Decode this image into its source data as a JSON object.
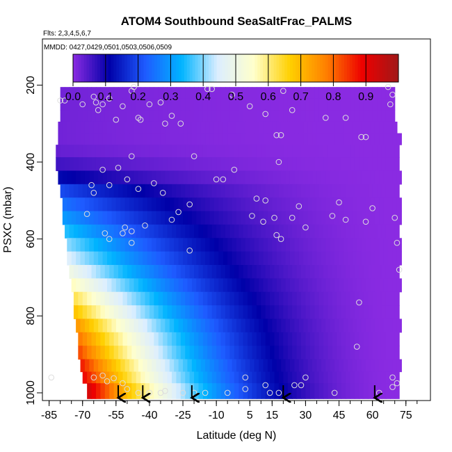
{
  "chart_data": {
    "type": "heatmap",
    "title": "ATOM4 Southbound SeaSaltFrac_PALMS",
    "flights_label": "Flts: 2,3,4,5,6,7",
    "dates_label": "MMDD: 0427,0429,0501,0503,0506,0509",
    "xlabel": "Latitude (deg N)",
    "ylabel": "PSXC (mbar)",
    "xlim": [
      -88,
      86
    ],
    "ylim": [
      1020,
      80
    ],
    "x_ticks": [
      -85,
      -70,
      -55,
      -40,
      -25,
      -10,
      5,
      15,
      30,
      45,
      60,
      75
    ],
    "x_tick_labels": [
      "-85",
      "-70",
      "-55",
      "-40",
      "-25",
      "-10",
      "5",
      "15",
      "30",
      "45",
      "60",
      "75"
    ],
    "y_ticks": [
      200,
      400,
      600,
      800,
      1000
    ],
    "y_tick_labels": [
      "200",
      "400",
      "600",
      "800",
      "1000"
    ],
    "colorbar": {
      "min": 0,
      "max": 1,
      "bins": 10,
      "tick_values": [
        0,
        0.1,
        0.2,
        0.3,
        0.4,
        0.5,
        0.6,
        0.7,
        0.8,
        0.9
      ],
      "tick_labels": [
        "0.0",
        "0.1",
        "0.2",
        "0.3",
        "0.4",
        "0.5",
        "0.6",
        "0.7",
        "0.8",
        "0.9"
      ],
      "colors": [
        "#8a2be2",
        "#0000a8",
        "#1e5bff",
        "#00b4ff",
        "#dceeff",
        "#ffffcc",
        "#ffd000",
        "#ff8000",
        "#ee0000",
        "#a01818"
      ]
    },
    "arrow_latitudes": [
      -54,
      -43,
      -21,
      20,
      61
    ],
    "pressure_levels": [
      220,
      250,
      280,
      310,
      340,
      370,
      405,
      440,
      475,
      510,
      545,
      580,
      615,
      650,
      685,
      720,
      755,
      790,
      825,
      860,
      895,
      930,
      960,
      990
    ],
    "extent_south": [
      -80,
      -80,
      -80,
      -81,
      -81,
      -82,
      -82,
      -81,
      -80,
      -79,
      -79,
      -78,
      -77,
      -77,
      -76,
      -75,
      -74,
      -74,
      -73,
      -72,
      -72,
      -71,
      -70,
      -68
    ],
    "extent_north": [
      70,
      70,
      70,
      71,
      72,
      72,
      72,
      72,
      72,
      72,
      72,
      72,
      72,
      72,
      72,
      72,
      72,
      72,
      72,
      72,
      72,
      72,
      72,
      72
    ],
    "gap_top_south": -58,
    "profile_fractions": [
      0.02,
      0.02,
      0.02,
      0.02,
      0.02,
      0.03,
      0.06,
      0.12,
      0.2,
      0.25,
      0.3,
      0.35,
      0.4,
      0.45,
      0.5,
      0.56,
      0.62,
      0.68,
      0.74,
      0.78,
      0.82,
      0.86,
      0.88,
      0.92
    ],
    "sample_points": [
      [
        -80,
        240
      ],
      [
        -78,
        240
      ],
      [
        -70,
        250
      ],
      [
        -65,
        230
      ],
      [
        -64,
        245
      ],
      [
        -63,
        265
      ],
      [
        -61,
        250
      ],
      [
        -58,
        235
      ],
      [
        -55,
        290
      ],
      [
        -52,
        255
      ],
      [
        -48,
        215
      ],
      [
        -47,
        205
      ],
      [
        -45,
        285
      ],
      [
        -44,
        290
      ],
      [
        -40,
        250
      ],
      [
        -35,
        245
      ],
      [
        -30,
        280
      ],
      [
        -26,
        300
      ],
      [
        -14,
        210
      ],
      [
        -12,
        210
      ],
      [
        -3,
        225
      ],
      [
        5,
        255
      ],
      [
        12,
        275
      ],
      [
        20,
        215
      ],
      [
        24,
        265
      ],
      [
        39,
        285
      ],
      [
        48,
        285
      ],
      [
        55,
        335
      ],
      [
        57,
        335
      ],
      [
        67,
        205
      ],
      [
        69,
        225
      ],
      [
        68,
        250
      ],
      [
        17,
        330
      ],
      [
        19,
        330
      ],
      [
        18,
        400
      ],
      [
        -48,
        385
      ],
      [
        -33,
        300
      ],
      [
        -66,
        460
      ],
      [
        -65,
        480
      ],
      [
        -61,
        420
      ],
      [
        -58,
        460
      ],
      [
        -54,
        415
      ],
      [
        -50,
        445
      ],
      [
        -45,
        470
      ],
      [
        -38,
        455
      ],
      [
        -34,
        480
      ],
      [
        -30,
        550
      ],
      [
        -27,
        530
      ],
      [
        -22,
        510
      ],
      [
        -22,
        630
      ],
      [
        -20,
        385
      ],
      [
        -10,
        445
      ],
      [
        -7,
        445
      ],
      [
        -2,
        420
      ],
      [
        6,
        540
      ],
      [
        8,
        495
      ],
      [
        11,
        555
      ],
      [
        12,
        500
      ],
      [
        16,
        545
      ],
      [
        17,
        590
      ],
      [
        19,
        600
      ],
      [
        24,
        545
      ],
      [
        27,
        515
      ],
      [
        30,
        570
      ],
      [
        42,
        540
      ],
      [
        45,
        505
      ],
      [
        48,
        550
      ],
      [
        57,
        555
      ],
      [
        60,
        520
      ],
      [
        70,
        545
      ],
      [
        -68,
        535
      ],
      [
        -60,
        585
      ],
      [
        -52,
        585
      ],
      [
        -48,
        580
      ],
      [
        -42,
        565
      ],
      [
        -48,
        610
      ],
      [
        -51,
        570
      ],
      [
        -58,
        600
      ],
      [
        71,
        610
      ],
      [
        72,
        680
      ],
      [
        54,
        765
      ],
      [
        69,
        960
      ],
      [
        69,
        985
      ],
      [
        71,
        975
      ],
      [
        53,
        880
      ],
      [
        -65,
        960
      ],
      [
        -61,
        955
      ],
      [
        -59,
        970
      ],
      [
        -56,
        962
      ],
      [
        -52,
        975
      ],
      [
        -50,
        990
      ],
      [
        -45,
        1000
      ],
      [
        -40,
        1000
      ],
      [
        -35,
        1000
      ],
      [
        -33,
        995
      ],
      [
        -25,
        1000
      ],
      [
        -20,
        1000
      ],
      [
        -15,
        1000
      ],
      [
        -5,
        1000
      ],
      [
        3,
        960
      ],
      [
        3,
        990
      ],
      [
        12,
        980
      ],
      [
        14,
        1000
      ],
      [
        18,
        1000
      ],
      [
        25,
        980
      ],
      [
        28,
        980
      ],
      [
        30,
        960
      ],
      [
        43,
        1000
      ],
      [
        63,
        1000
      ],
      [
        -84,
        960
      ]
    ]
  }
}
